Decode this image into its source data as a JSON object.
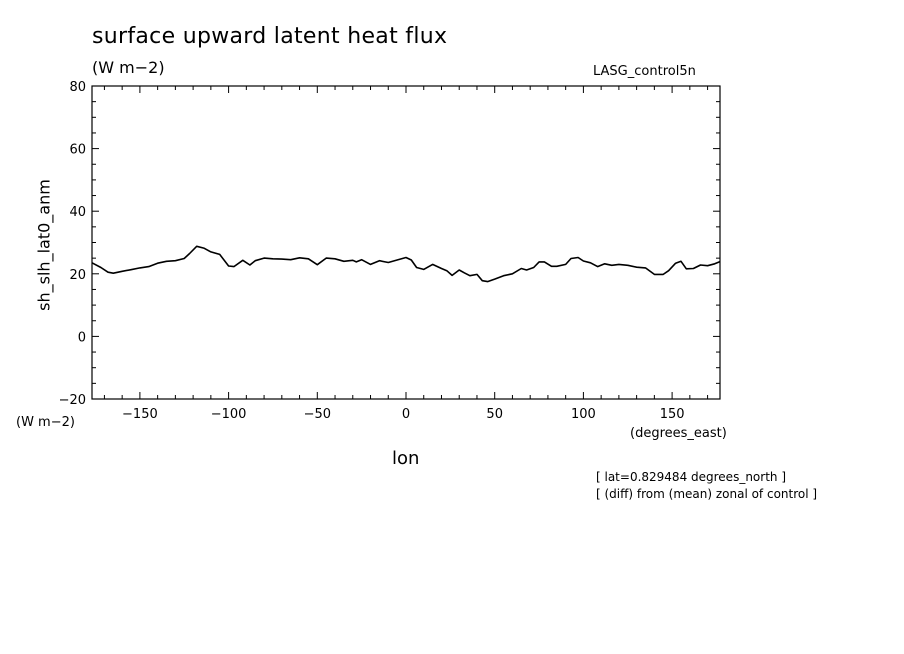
{
  "header": {
    "title": "surface upward latent heat flux",
    "units": "(W m−2)",
    "run_name": "LASG_control5n"
  },
  "axes": {
    "ylabel": "sh_slh_lat0_anm",
    "yunits": "(W m−2)",
    "xlabel": "lon",
    "xunits": "(degrees_east)"
  },
  "notes": {
    "line1": "[ lat=0.829484 degrees_north ]",
    "line2": "[ (diff) from (mean) zonal of control ]"
  },
  "chart_data": {
    "type": "line",
    "title": "surface upward latent heat flux",
    "xlabel": "lon",
    "ylabel": "sh_slh_lat0_anm",
    "xlim": [
      -177,
      177
    ],
    "ylim": [
      -20,
      80
    ],
    "xticks": [
      -150,
      -100,
      -50,
      0,
      50,
      100,
      150
    ],
    "xtick_labels": [
      "−150",
      "−100",
      "−50",
      "0",
      "50",
      "100",
      "150"
    ],
    "yticks": [
      -20,
      0,
      20,
      40,
      60,
      80
    ],
    "ytick_labels": [
      "−20",
      "0",
      "20",
      "40",
      "60",
      "80"
    ],
    "grid": false,
    "line_color": "#000000",
    "series": [
      {
        "x": [
          -177,
          -172,
          -168,
          -165,
          -160,
          -155,
          -150,
          -145,
          -140,
          -135,
          -130,
          -125,
          -122,
          -118,
          -114,
          -110,
          -105,
          -100,
          -97,
          -92,
          -88,
          -85,
          -80,
          -75,
          -70,
          -65,
          -60,
          -55,
          -50,
          -45,
          -40,
          -35,
          -30,
          -28,
          -25,
          -20,
          -15,
          -10,
          -5,
          0,
          3,
          6,
          10,
          15,
          20,
          23,
          26,
          30,
          33,
          36,
          40,
          43,
          46,
          50,
          55,
          60,
          65,
          68,
          72,
          75,
          78,
          82,
          85,
          90,
          93,
          97,
          100,
          104,
          108,
          112,
          116,
          120,
          125,
          130,
          135,
          140,
          145,
          148,
          152,
          155,
          158,
          162,
          166,
          170,
          174,
          177
        ],
        "y": [
          23.5,
          22,
          20.5,
          20.2,
          20.8,
          21.3,
          21.9,
          22.3,
          23.4,
          24,
          24.2,
          24.9,
          26.5,
          28.8,
          28.2,
          27,
          26.2,
          22.5,
          22.3,
          24.3,
          22.8,
          24.2,
          25,
          24.8,
          24.7,
          24.5,
          25.1,
          24.8,
          22.9,
          25,
          24.8,
          24,
          24.3,
          23.8,
          24.5,
          23,
          24.2,
          23.6,
          24.4,
          25.2,
          24.4,
          22,
          21.4,
          23,
          21.7,
          21,
          19.5,
          21.2,
          20.3,
          19.4,
          19.8,
          17.8,
          17.5,
          18.3,
          19.4,
          20,
          21.7,
          21.2,
          22,
          23.8,
          23.8,
          22.4,
          22.4,
          23,
          24.9,
          25.2,
          24.1,
          23.5,
          22.3,
          23.2,
          22.7,
          23,
          22.7,
          22.1,
          21.9,
          19.8,
          19.8,
          21,
          23.4,
          24,
          21.6,
          21.7,
          22.8,
          22.6,
          23.2,
          23.9
        ]
      }
    ]
  }
}
